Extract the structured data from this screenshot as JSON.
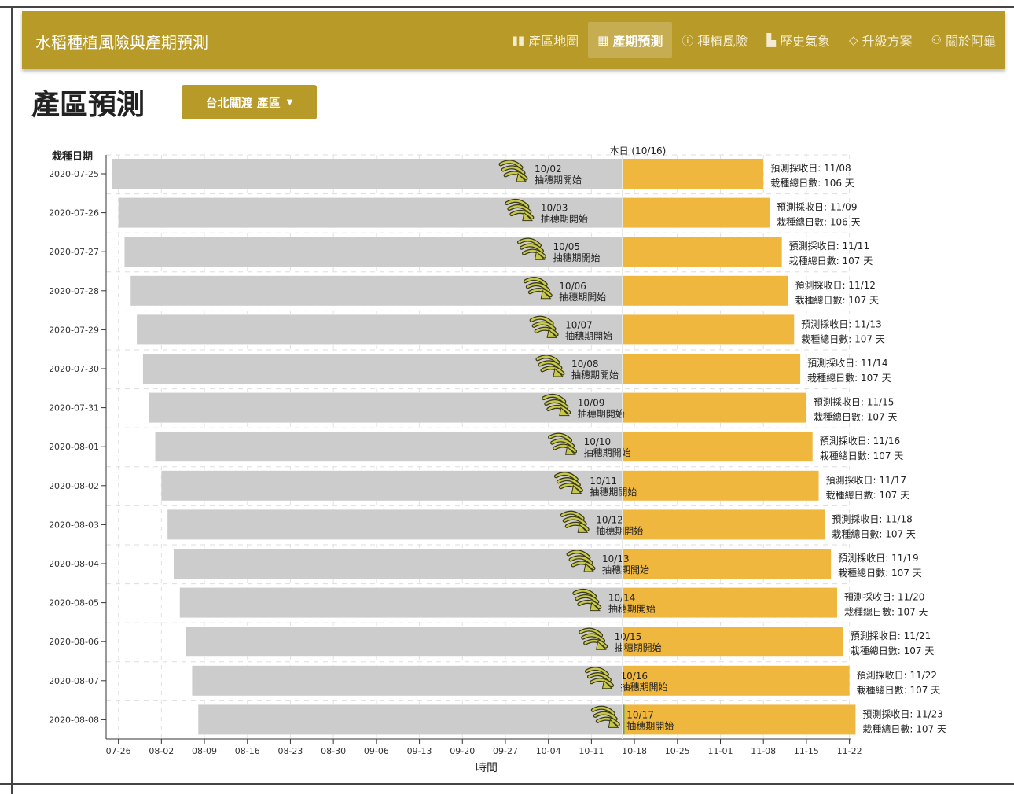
{
  "app": {
    "title": "水稻種植風險與產期預測"
  },
  "nav": [
    {
      "icon": "map-icon",
      "glyph": "▮▮",
      "label": "產區地圖",
      "active": false
    },
    {
      "icon": "calculator-icon",
      "glyph": "▦",
      "label": "產期預測",
      "active": true
    },
    {
      "icon": "info-icon",
      "glyph": "ⓘ",
      "label": "種植風險",
      "active": false
    },
    {
      "icon": "bar-chart-icon",
      "glyph": "▙",
      "label": "歷史氣象",
      "active": false
    },
    {
      "icon": "diamond-icon",
      "glyph": "◇",
      "label": "升級方案",
      "active": false
    },
    {
      "icon": "users-icon",
      "glyph": "⚇",
      "label": "關於阿龜",
      "active": false
    }
  ],
  "page": {
    "title": "產區預測",
    "region_label": "台北關渡 產區"
  },
  "colors": {
    "navbar": "#b79a28",
    "grown_bar": "#cccccc",
    "remaining_bar": "#f0b73f",
    "today_line": "#4caf50",
    "icon": "#c8c84a"
  },
  "chart_data": {
    "type": "bar",
    "orientation": "horizontal-gantt",
    "ylabel": "栽種日期",
    "xlabel": "時間",
    "today_label": "本日 (10/16)",
    "today": "2020-10-16",
    "x_ticks": [
      "07-26",
      "08-02",
      "08-09",
      "08-16",
      "08-23",
      "08-30",
      "09-06",
      "09-13",
      "09-20",
      "09-27",
      "10-04",
      "10-11",
      "10-18",
      "10-25",
      "11-01",
      "11-08",
      "11-15",
      "11-22"
    ],
    "heading_text": "抽穗期開始",
    "harvest_prefix": "預測採收日: ",
    "days_prefix": "栽種總日數: ",
    "days_suffix": " 天",
    "rows": [
      {
        "plant": "2020-07-25",
        "heading": "10/02",
        "harvest": "11/08",
        "days": 106
      },
      {
        "plant": "2020-07-26",
        "heading": "10/03",
        "harvest": "11/09",
        "days": 106
      },
      {
        "plant": "2020-07-27",
        "heading": "10/05",
        "harvest": "11/11",
        "days": 107
      },
      {
        "plant": "2020-07-28",
        "heading": "10/06",
        "harvest": "11/12",
        "days": 107
      },
      {
        "plant": "2020-07-29",
        "heading": "10/07",
        "harvest": "11/13",
        "days": 107
      },
      {
        "plant": "2020-07-30",
        "heading": "10/08",
        "harvest": "11/14",
        "days": 107
      },
      {
        "plant": "2020-07-31",
        "heading": "10/09",
        "harvest": "11/15",
        "days": 107
      },
      {
        "plant": "2020-08-01",
        "heading": "10/10",
        "harvest": "11/16",
        "days": 107
      },
      {
        "plant": "2020-08-02",
        "heading": "10/11",
        "harvest": "11/17",
        "days": 107
      },
      {
        "plant": "2020-08-03",
        "heading": "10/12",
        "harvest": "11/18",
        "days": 107
      },
      {
        "plant": "2020-08-04",
        "heading": "10/13",
        "harvest": "11/19",
        "days": 107
      },
      {
        "plant": "2020-08-05",
        "heading": "10/14",
        "harvest": "11/20",
        "days": 107
      },
      {
        "plant": "2020-08-06",
        "heading": "10/15",
        "harvest": "11/21",
        "days": 107
      },
      {
        "plant": "2020-08-07",
        "heading": "10/16",
        "harvest": "11/22",
        "days": 107
      },
      {
        "plant": "2020-08-08",
        "heading": "10/17",
        "harvest": "11/23",
        "days": 107
      }
    ]
  }
}
